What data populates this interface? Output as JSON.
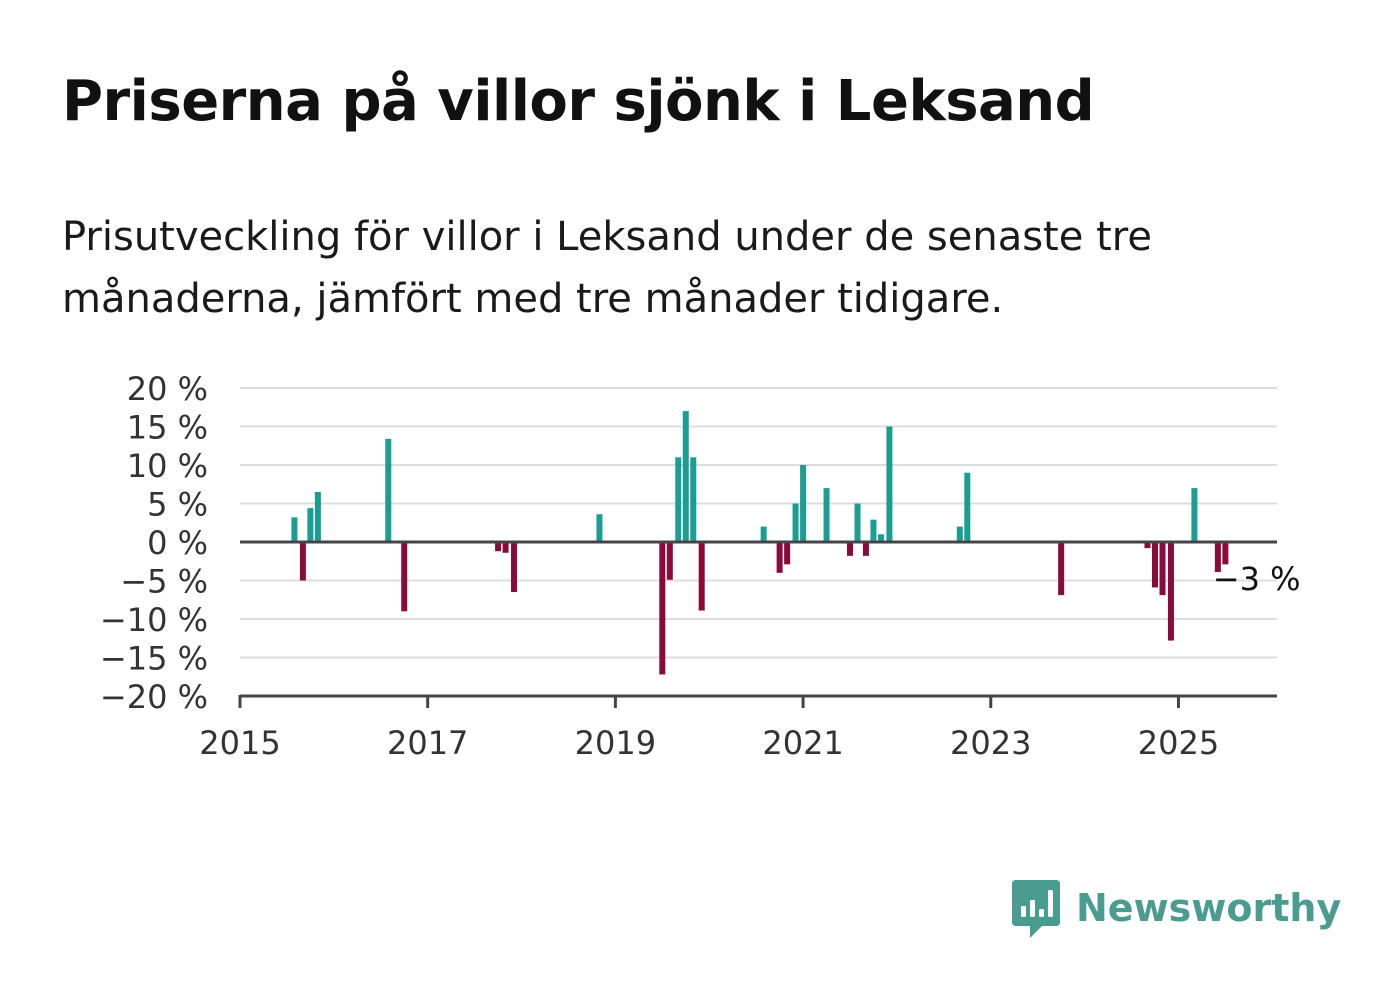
{
  "header": {
    "title": "Priserna på villor sjönk i Leksand",
    "subtitle": "Prisutveckling för villor i Leksand under de senaste tre månaderna, jämfört med tre månader tidigare."
  },
  "brand": {
    "name": "Newsworthy",
    "icon": "newsworthy-logo-icon",
    "color": "#4a9b90"
  },
  "colors": {
    "positive": "#1a9e94",
    "negative": "#8a0a3a",
    "grid": "#dddddd",
    "axis": "#444444"
  },
  "chart_data": {
    "type": "bar",
    "y_unit": "%",
    "ylim": [
      -20,
      20
    ],
    "yticks": [
      20,
      15,
      10,
      5,
      0,
      -5,
      -10,
      -15,
      -20
    ],
    "ytick_labels": [
      "20 %",
      "15 %",
      "10 %",
      "5 %",
      "0 %",
      "−5 %",
      "−10 %",
      "−15 %",
      "−20 %"
    ],
    "xlim": [
      2015,
      2026.05
    ],
    "xticks": [
      2015,
      2017,
      2019,
      2021,
      2023,
      2025
    ],
    "xtick_labels": [
      "2015",
      "2017",
      "2019",
      "2021",
      "2023",
      "2025"
    ],
    "grid": true,
    "annotation": {
      "text": "−3 %",
      "x": 2025.6,
      "y": -3
    },
    "points": [
      {
        "x": 2015.58,
        "y": 3.2
      },
      {
        "x": 2015.67,
        "y": -5.0
      },
      {
        "x": 2015.75,
        "y": 4.4
      },
      {
        "x": 2015.83,
        "y": 6.5
      },
      {
        "x": 2016.58,
        "y": 13.4
      },
      {
        "x": 2016.75,
        "y": -9.0
      },
      {
        "x": 2017.75,
        "y": -1.2
      },
      {
        "x": 2017.83,
        "y": -1.4
      },
      {
        "x": 2017.92,
        "y": -6.5
      },
      {
        "x": 2018.83,
        "y": 3.6
      },
      {
        "x": 2019.5,
        "y": -17.2
      },
      {
        "x": 2019.58,
        "y": -4.9
      },
      {
        "x": 2019.67,
        "y": 11.0
      },
      {
        "x": 2019.75,
        "y": 17.0
      },
      {
        "x": 2019.83,
        "y": 11.0
      },
      {
        "x": 2019.92,
        "y": -8.9
      },
      {
        "x": 2020.58,
        "y": 2.0
      },
      {
        "x": 2020.75,
        "y": -4.0
      },
      {
        "x": 2020.83,
        "y": -2.9
      },
      {
        "x": 2020.92,
        "y": 5.0
      },
      {
        "x": 2021.0,
        "y": 10.0
      },
      {
        "x": 2021.25,
        "y": 7.0
      },
      {
        "x": 2021.5,
        "y": -1.8
      },
      {
        "x": 2021.58,
        "y": 5.0
      },
      {
        "x": 2021.67,
        "y": -1.8
      },
      {
        "x": 2021.75,
        "y": 2.9
      },
      {
        "x": 2021.83,
        "y": 1.0
      },
      {
        "x": 2021.92,
        "y": 15.0
      },
      {
        "x": 2022.67,
        "y": 2.0
      },
      {
        "x": 2022.75,
        "y": 9.0
      },
      {
        "x": 2023.75,
        "y": -6.9
      },
      {
        "x": 2024.67,
        "y": -0.8
      },
      {
        "x": 2024.75,
        "y": -5.9
      },
      {
        "x": 2024.83,
        "y": -6.9
      },
      {
        "x": 2024.92,
        "y": -12.8
      },
      {
        "x": 2025.17,
        "y": 7.0
      },
      {
        "x": 2025.42,
        "y": -3.9
      },
      {
        "x": 2025.5,
        "y": -2.9
      }
    ]
  }
}
